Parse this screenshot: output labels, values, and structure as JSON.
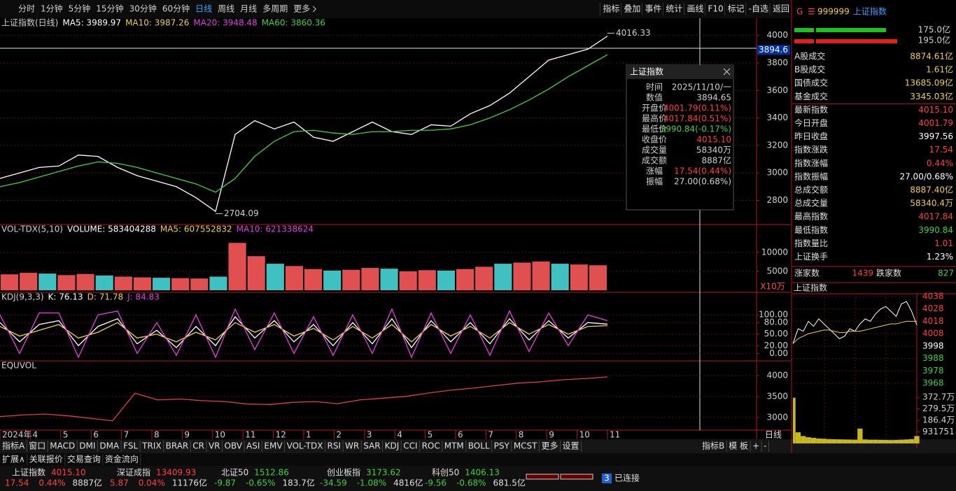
{
  "toolbar": {
    "periods": [
      "分时",
      "1分钟",
      "5分钟",
      "15分钟",
      "30分钟",
      "60分钟",
      "日线",
      "周线",
      "月线",
      "多周期",
      "更多"
    ],
    "active": 6,
    "tools": [
      "指标",
      "叠加",
      "事件",
      "统计",
      "画线",
      "F10",
      "标记",
      "-自选",
      "返回"
    ]
  },
  "time_axis": {
    "labels": [
      "2024年",
      "4",
      "5",
      "6",
      "7",
      "8",
      "9",
      "10",
      "11",
      "12",
      "1",
      "2",
      "3",
      "4",
      "5",
      "6",
      "7",
      "8",
      "9",
      "10",
      "11"
    ],
    "period_tab": "日线"
  },
  "chart_data": [
    {
      "type": "line",
      "title": "上证指数(日线)",
      "indicators": [
        {
          "text": "MA5: 3989.97",
          "color": "#ffffff"
        },
        {
          "text": "MA10: 3987.26",
          "color": "#f0d040"
        },
        {
          "text": "MA20: 3948.48",
          "color": "#e040e0"
        },
        {
          "text": "MA60: 3860.36",
          "color": "#40d040"
        }
      ],
      "ylim": [
        2640,
        4110
      ],
      "yticks": [
        2800,
        3000,
        3200,
        3400,
        3600,
        3800,
        4000
      ],
      "series": [
        {
          "color": "#ffffff",
          "values": [
            2960,
            3000,
            3040,
            3050,
            3130,
            3120,
            3040,
            2980,
            2940,
            2900,
            2820,
            2720,
            3280,
            3380,
            3320,
            3370,
            3260,
            3230,
            3300,
            3370,
            3300,
            3280,
            3350,
            3340,
            3430,
            3490,
            3580,
            3700,
            3820,
            3860,
            3900,
            3995
          ]
        },
        {
          "color": "#40d040",
          "values": [
            2900,
            2930,
            2970,
            3010,
            3050,
            3080,
            3070,
            3040,
            3000,
            2960,
            2920,
            2860,
            2960,
            3120,
            3230,
            3300,
            3310,
            3290,
            3280,
            3300,
            3300,
            3310,
            3310,
            3320,
            3350,
            3400,
            3460,
            3530,
            3610,
            3700,
            3780,
            3860
          ]
        }
      ],
      "annotations": [
        {
          "text": "4016.33",
          "value": 4016.33,
          "index": 31
        },
        {
          "text": "2704.09",
          "value": 2704.09,
          "index": 11
        }
      ],
      "crosshair": {
        "value": 3894.6,
        "label": "3894.6"
      }
    },
    {
      "type": "bar",
      "title": "VOL-TDX(5,10)",
      "indicators": [
        {
          "text": "VOLUME: 583404288",
          "color": "#ffffff"
        },
        {
          "text": "MA5: 607552832",
          "color": "#f0d040"
        },
        {
          "text": "MA10: 621338624",
          "color": "#e040e0"
        }
      ],
      "ylim": [
        0,
        16800
      ],
      "yticks": [
        5000,
        10000
      ],
      "unit": "X10万",
      "color": "#e05050",
      "values": [
        4200,
        4600,
        4400,
        4000,
        4300,
        3900,
        3600,
        3400,
        3300,
        3200,
        3100,
        3600,
        12500,
        9000,
        7000,
        6400,
        5600,
        5200,
        5400,
        5900,
        5700,
        5000,
        5300,
        5200,
        5600,
        6200,
        7000,
        7300,
        7600,
        7000,
        6800,
        6600
      ]
    },
    {
      "type": "line",
      "title": "KDJ(9,3,3)",
      "indicators": [
        {
          "text": "K: 76.13",
          "color": "#ffffff"
        },
        {
          "text": "D: 71.78",
          "color": "#f0d040"
        },
        {
          "text": "J: 84.83",
          "color": "#e040e0"
        }
      ],
      "ylim": [
        -14,
        153
      ],
      "yticks": [
        {
          "value": 0,
          "label": "0.00"
        },
        {
          "value": 20,
          "label": "20.00"
        },
        {
          "value": 50,
          "label": "50.00"
        },
        {
          "value": 80,
          "label": "80.00"
        },
        {
          "value": 100,
          "label": "100.00"
        }
      ],
      "series": [
        {
          "color": "#ffffff",
          "values": [
            80,
            30,
            75,
            85,
            20,
            70,
            90,
            25,
            60,
            15,
            70,
            20,
            95,
            40,
            85,
            30,
            75,
            20,
            80,
            25,
            90,
            15,
            85,
            30,
            80,
            25,
            90,
            35,
            85,
            40,
            80,
            76
          ]
        },
        {
          "color": "#f0d040",
          "values": [
            70,
            45,
            60,
            75,
            40,
            55,
            80,
            40,
            50,
            30,
            55,
            35,
            80,
            55,
            75,
            45,
            65,
            35,
            70,
            40,
            75,
            30,
            75,
            45,
            70,
            40,
            80,
            50,
            75,
            50,
            70,
            72
          ]
        },
        {
          "color": "#e040e0",
          "values": [
            100,
            0,
            105,
            105,
            -10,
            100,
            110,
            0,
            80,
            -5,
            100,
            -10,
            115,
            10,
            105,
            0,
            95,
            -5,
            100,
            0,
            115,
            -10,
            105,
            0,
            100,
            -5,
            110,
            5,
            105,
            20,
            100,
            85
          ]
        }
      ]
    },
    {
      "type": "line",
      "title": "EQUVOL",
      "ylim": [
        2746,
        4302
      ],
      "yticks": [
        3000,
        3500,
        4000
      ],
      "color": "#e04040",
      "values": [
        3020,
        3060,
        3080,
        3040,
        2980,
        2920,
        3580,
        3420,
        3440,
        3400,
        3380,
        3320,
        3310,
        3360,
        3380,
        3330,
        3420,
        3460,
        3500,
        3580,
        3650,
        3700,
        3760,
        3820,
        3850,
        3900,
        3930,
        3970
      ]
    }
  ],
  "popup": {
    "title": "上证指数",
    "rows": [
      {
        "label": "时间",
        "value": "2025/11/10/一",
        "color": "#d0d0d0"
      },
      {
        "label": "数值",
        "value": "3894.65",
        "color": "#d0d0d0"
      },
      {
        "label": "开盘价",
        "value": "4001.79(0.11%)",
        "color": "#ff4040"
      },
      {
        "label": "最高价",
        "value": "4017.84(0.51%)",
        "color": "#ff4040"
      },
      {
        "label": "最低价",
        "value": "3990.84(-0.17%)",
        "color": "#40d040"
      },
      {
        "label": "收盘价",
        "value": "4015.10",
        "color": "#ff4040"
      },
      {
        "label": "成交量",
        "value": "58340万",
        "color": "#d0d0d0"
      },
      {
        "label": "成交额",
        "value": "8887亿",
        "color": "#d0d0d0"
      },
      {
        "label": "涨幅",
        "value": "17.54(0.44%)",
        "color": "#ff4040"
      },
      {
        "label": "振幅",
        "value": "27.00(0.68%)",
        "color": "#d0d0d0"
      }
    ]
  },
  "quote": {
    "mark": "G",
    "menu": "☰",
    "code": "999999",
    "name": "上证指数",
    "buy": "175.0亿",
    "sell": "195.0亿",
    "stats": [
      {
        "label": "A股成交",
        "value": "8874.61亿",
        "color": "#f0d040"
      },
      {
        "label": "B股成交",
        "value": "1.61亿",
        "color": "#f0d040"
      },
      {
        "label": "国债成交",
        "value": "13685.09亿",
        "color": "#f0d040"
      },
      {
        "label": "基金成交",
        "value": "3345.03亿",
        "color": "#f0d040"
      },
      {
        "label": "最新指数",
        "value": "4015.10",
        "color": "#ff4040"
      },
      {
        "label": "今日开盘",
        "value": "4001.79",
        "color": "#ff4040"
      },
      {
        "label": "昨日收盘",
        "value": "3997.56",
        "color": "#ffffff"
      },
      {
        "label": "指数涨跌",
        "value": "17.54",
        "color": "#ff4040"
      },
      {
        "label": "指数涨幅",
        "value": "0.44%",
        "color": "#ff4040"
      },
      {
        "label": "指数振幅",
        "value": "27.00/0.68%",
        "color": "#ffffff"
      },
      {
        "label": "总成交额",
        "value": "8887.40亿",
        "color": "#f0d040"
      },
      {
        "label": "总成交量",
        "value": "58340.4万",
        "color": "#f0d040"
      },
      {
        "label": "最高指数",
        "value": "4017.84",
        "color": "#ff4040"
      },
      {
        "label": "最低指数",
        "value": "3990.84",
        "color": "#40d040"
      },
      {
        "label": "指数量比",
        "value": "1.01",
        "color": "#ff4040"
      },
      {
        "label": "上证换手",
        "value": "1.23%",
        "color": "#ffffff"
      }
    ],
    "up_label": "涨家数",
    "up": "1439",
    "down_label": "跌家数",
    "down": "827"
  },
  "mini_chart": {
    "type": "line",
    "title": "上证指数",
    "ylim": [
      3964,
      4040
    ],
    "yticks": [
      3968,
      3978,
      3988,
      3998,
      4008,
      4018,
      4028,
      4038
    ],
    "vticks": [
      {
        "value": 931751,
        "label": "931751"
      },
      {
        "value": 1864000,
        "label": "186.4万"
      },
      {
        "value": 2795000,
        "label": "279.5万"
      },
      {
        "value": 3727000,
        "label": "372.7万"
      }
    ],
    "vlim": [
      0,
      4300000
    ],
    "price": [
      4000,
      4012,
      4010,
      4018,
      4014,
      4020,
      4016,
      4012,
      4008,
      4004,
      4006,
      4012,
      4010,
      4016,
      4020,
      4018,
      4024,
      4028,
      4030,
      4026,
      4022,
      4032,
      4034,
      4026,
      4015
    ],
    "avg": [
      4000,
      4004,
      4006,
      4008,
      4009,
      4010,
      4011,
      4011,
      4010,
      4009,
      4009,
      4010,
      4010,
      4010,
      4011,
      4012,
      4013,
      4014,
      4015,
      4016,
      4016,
      4017,
      4018,
      4018,
      4018
    ],
    "volume": [
      3700000,
      900000,
      600000,
      500000,
      450000,
      400000,
      380000,
      350000,
      340000,
      330000,
      320000,
      310000,
      300000,
      1200000,
      320000,
      300000,
      300000,
      290000,
      280000,
      270000,
      280000,
      300000,
      320000,
      350000,
      600000
    ]
  },
  "tabs_a": [
    "指标A",
    "窗口",
    "MACD",
    "DMI",
    "DMA",
    "FSL",
    "TRIX",
    "BRAR",
    "CR",
    "VR",
    "OBV",
    "ASI",
    "EMV",
    "VOL-TDX",
    "RSI",
    "WR",
    "SAR",
    "KDJ",
    "CCI",
    "ROC",
    "MTM",
    "BOLL",
    "PSY",
    "MCST",
    "更多",
    "设置"
  ],
  "tabs_b": [
    "指标B",
    "模 板",
    "+",
    "-"
  ],
  "tabs_c": [
    "扩展∧",
    "关联报价",
    "交易查询",
    "资金流向"
  ],
  "tickers": [
    {
      "name": "上证指数",
      "price": "4015.10",
      "change": "17.54",
      "pct": "0.44%",
      "amount": "8887亿",
      "color": "#ff4040"
    },
    {
      "name": "深证成指",
      "price": "13409.93",
      "change": "5.87",
      "pct": "0.04%",
      "amount": "11176亿",
      "color": "#ff4040"
    },
    {
      "name": "北证50",
      "price": "1512.86",
      "change": "-9.87",
      "pct": "-0.65%",
      "amount": "183.7亿",
      "color": "#40d040"
    },
    {
      "name": "创业板指",
      "price": "3173.62",
      "change": "-34.59",
      "pct": "-1.08%",
      "amount": "4816亿",
      "color": "#40d040"
    },
    {
      "name": "科创50",
      "price": "1406.13",
      "change": "-9.56",
      "pct": "-0.68%",
      "amount": "681.5亿",
      "color": "#40d040"
    }
  ],
  "status": {
    "count": "3",
    "text": "已连接"
  }
}
